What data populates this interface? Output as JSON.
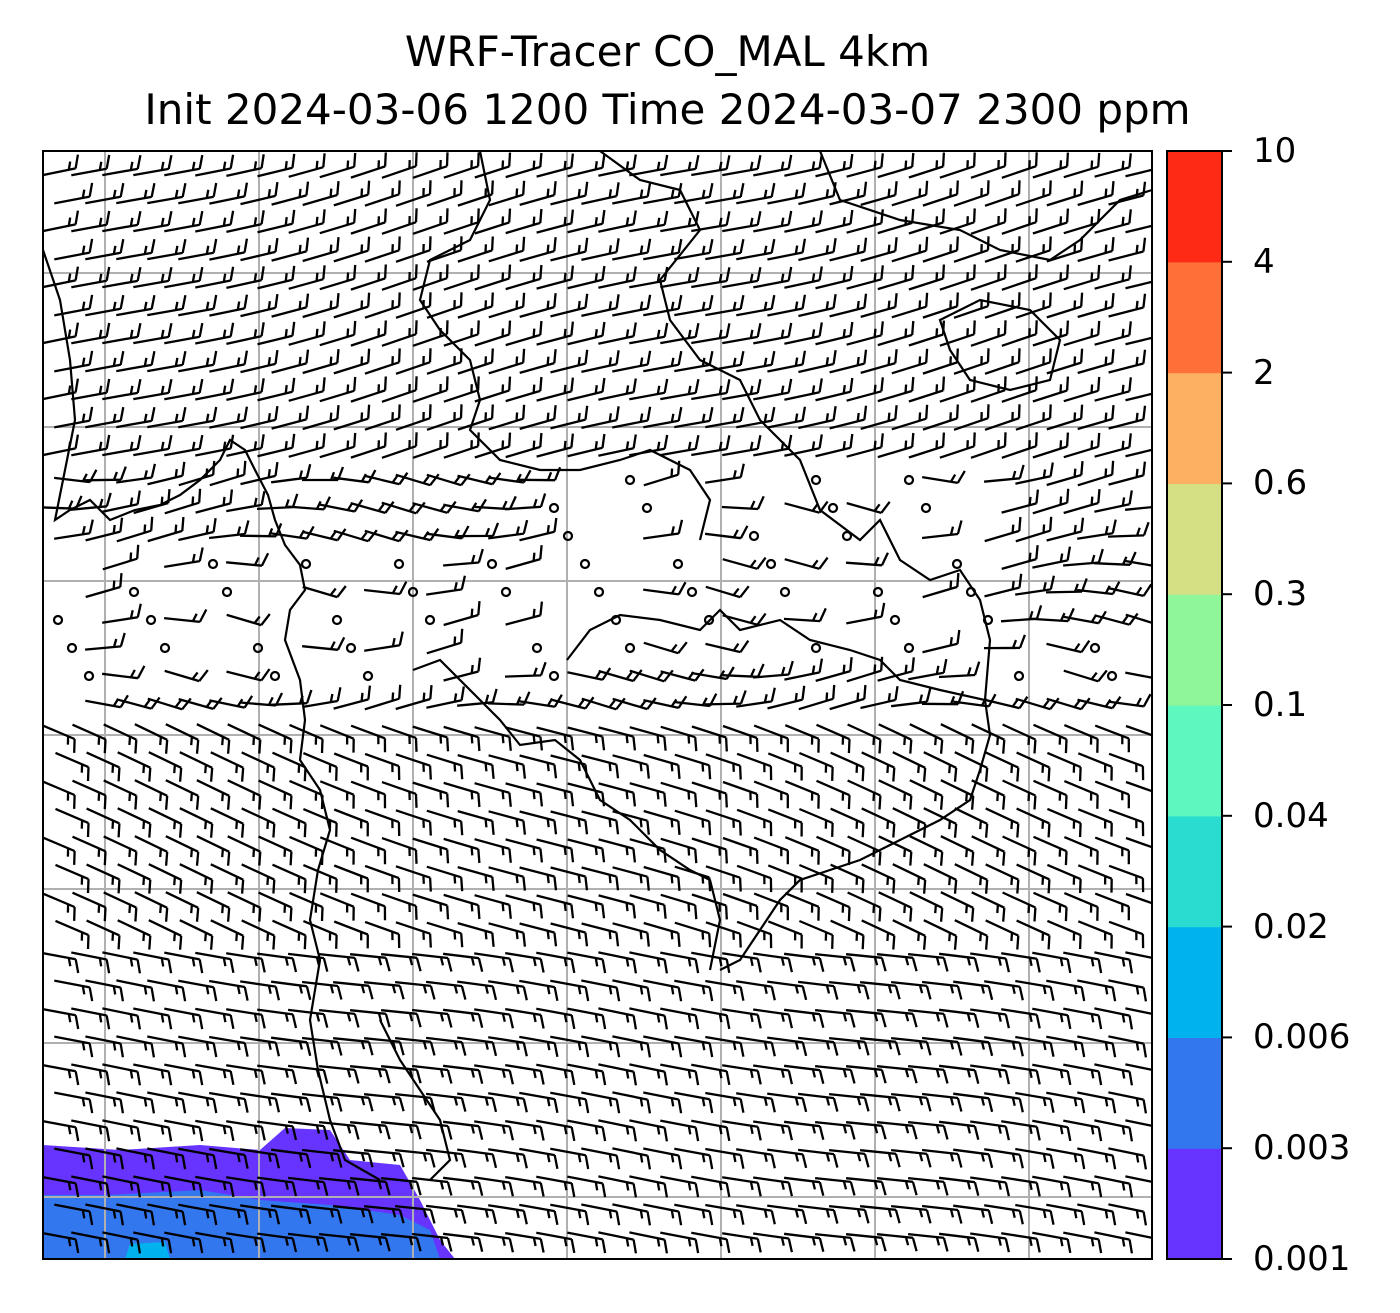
{
  "title": {
    "line1": "WRF-Tracer CO_MAL 4km",
    "line2": "Init 2024-03-06 1200 Time 2024-03-07 2300 ppm"
  },
  "colorbar": {
    "levels": [
      "0.001",
      "0.003",
      "0.006",
      "0.02",
      "0.04",
      "0.1",
      "0.3",
      "0.6",
      "2",
      "4",
      "10"
    ],
    "colors": [
      "#6633ff",
      "#3377ee",
      "#00b3ee",
      "#2adbd0",
      "#5ef7c0",
      "#8ff79a",
      "#d4e083",
      "#fdb061",
      "#fe7038",
      "#fe2a16"
    ]
  },
  "map": {
    "field": "CO_MAL tracer concentration",
    "units": "ppm",
    "overlay": "wind barbs",
    "gridlines": true,
    "coastlines": true
  }
}
